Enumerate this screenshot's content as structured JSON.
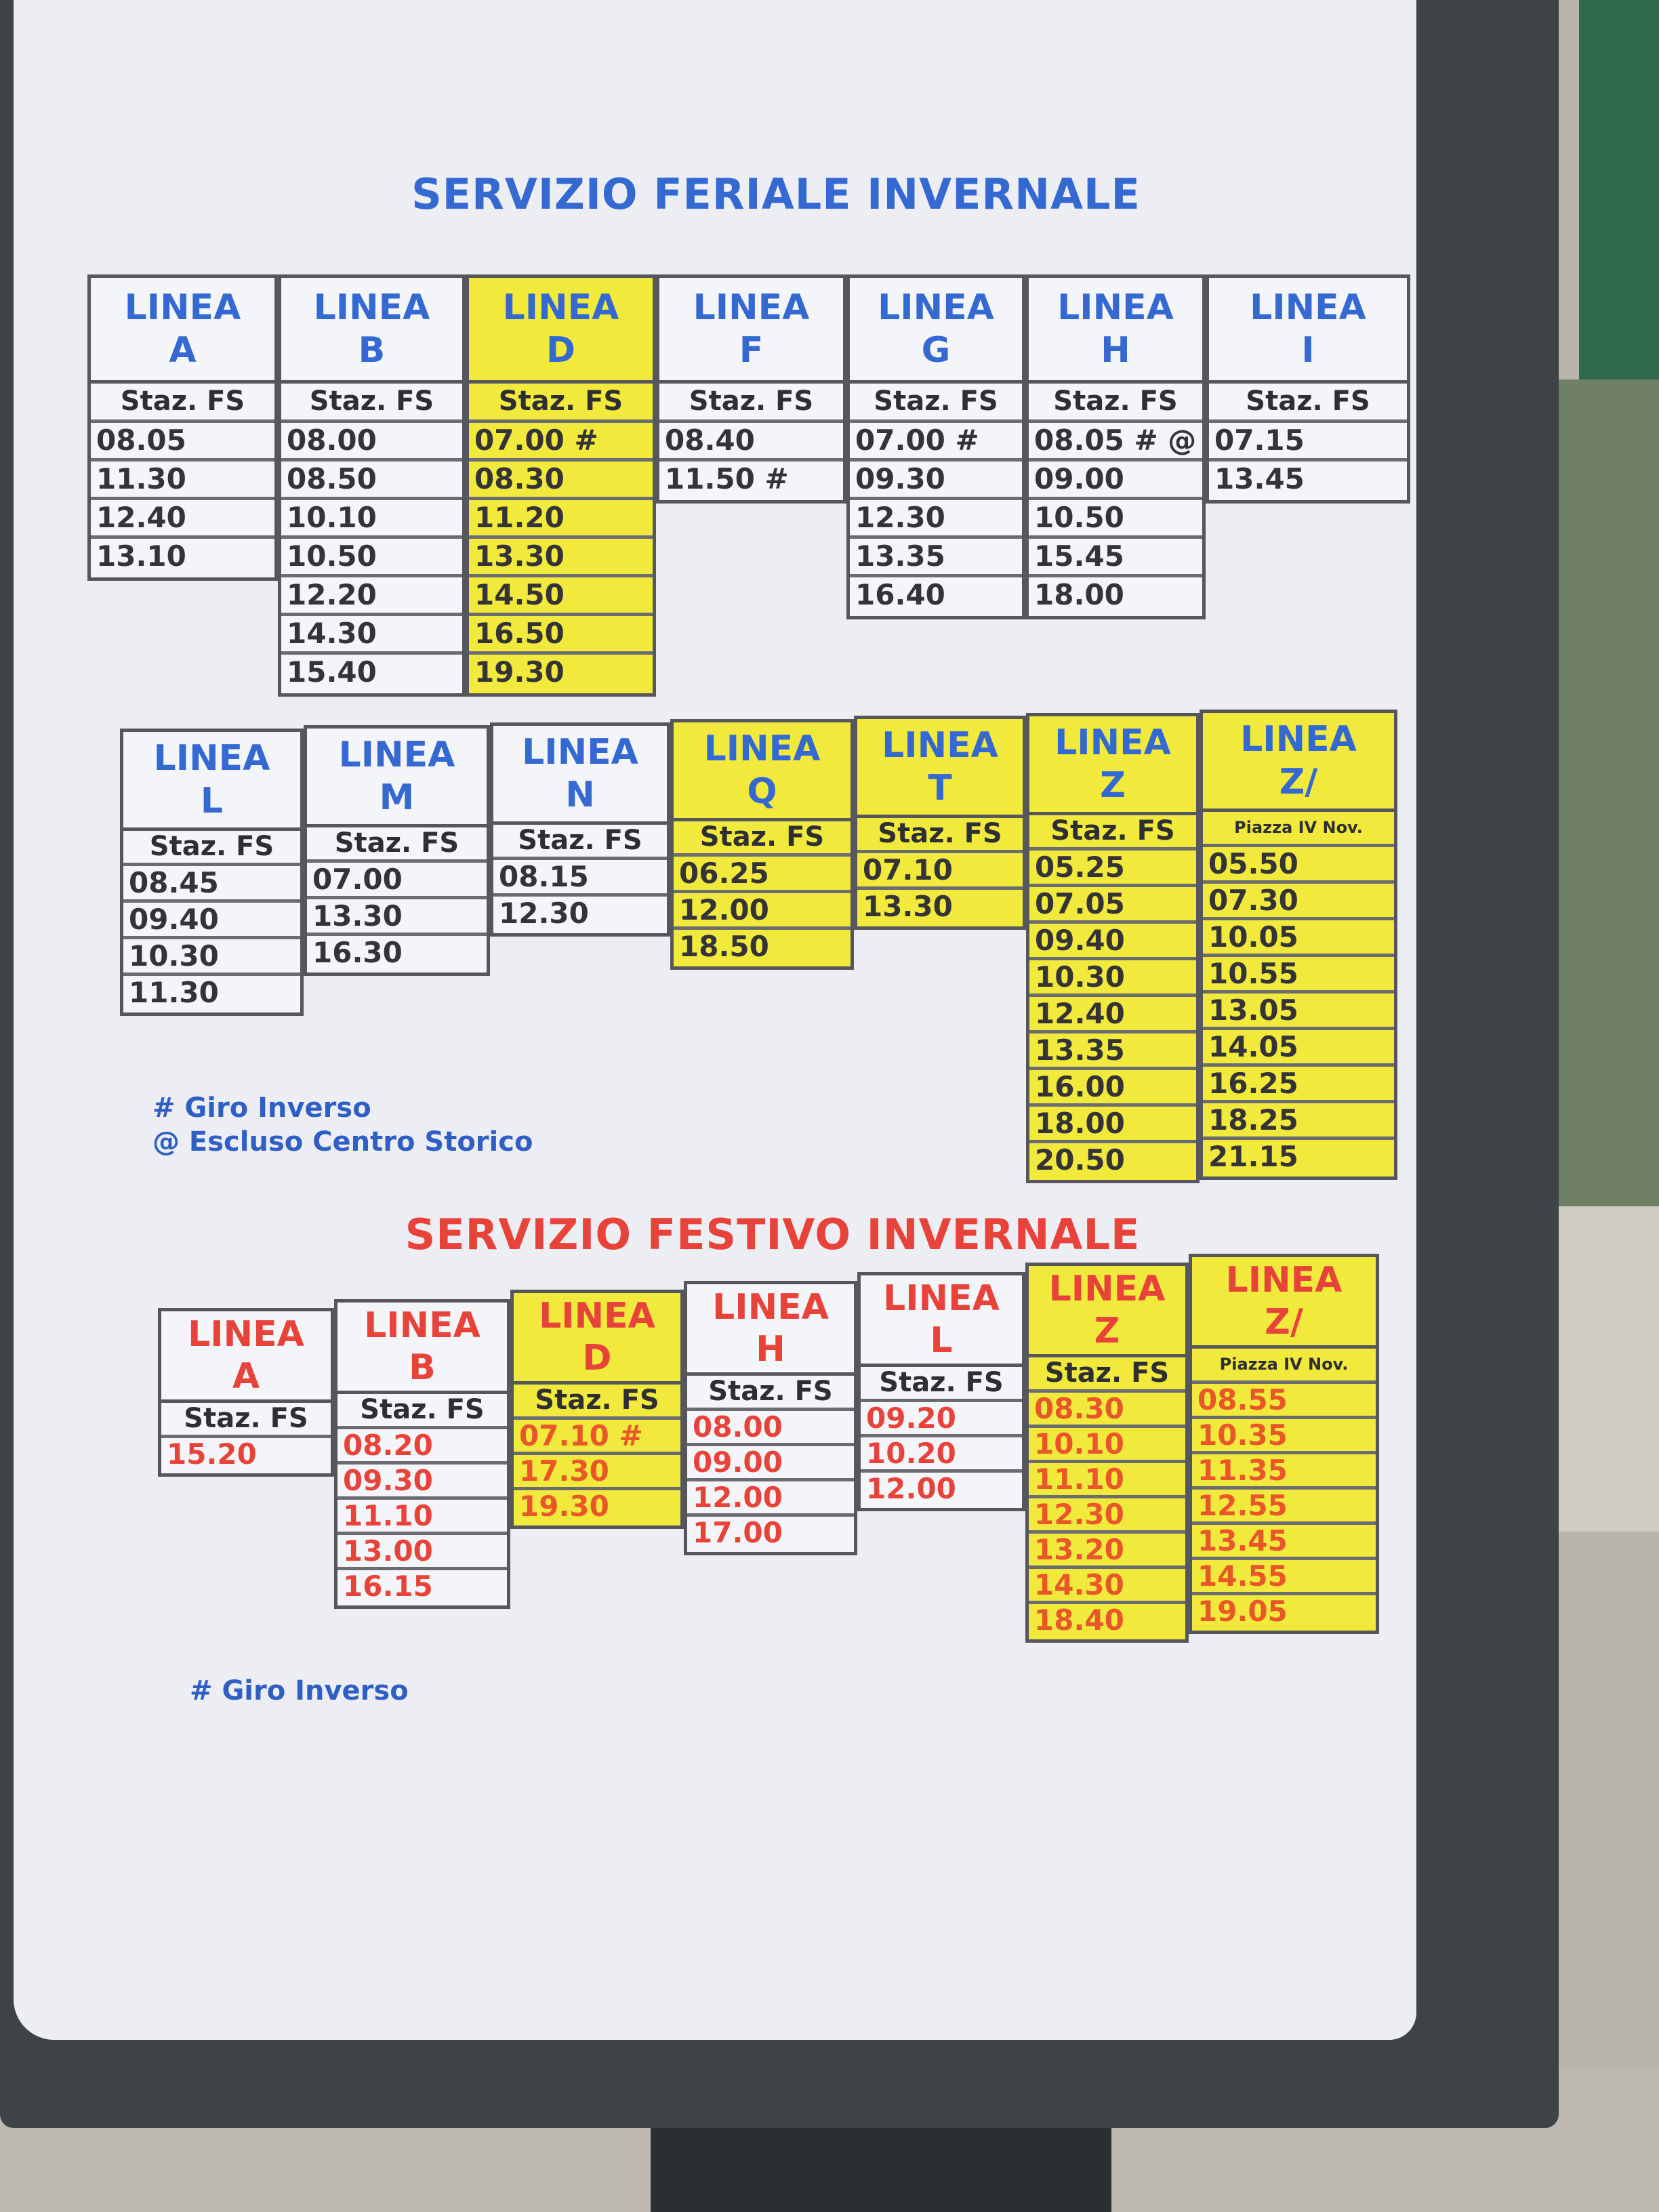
{
  "colors": {
    "header_blue": "#3569d2",
    "festivo_red": "#e8433a",
    "highlight_yellow": "#f1e93c",
    "time_dark": "#333338"
  },
  "sections": [
    {
      "title": "SERVIZIO FERIALE INVERNALE",
      "columns": [
        {
          "label": "LINEA",
          "line": "A",
          "stop": "Staz. FS",
          "highlighted": false,
          "times": [
            "08.05",
            "11.30",
            "12.40",
            "13.10"
          ]
        },
        {
          "label": "LINEA",
          "line": "B",
          "stop": "Staz. FS",
          "highlighted": false,
          "times": [
            "08.00",
            "08.50",
            "10.10",
            "10.50",
            "12.20",
            "14.30",
            "15.40"
          ]
        },
        {
          "label": "LINEA",
          "line": "D",
          "stop": "Staz. FS",
          "highlighted": true,
          "times": [
            "07.00 #",
            "08.30",
            "11.20",
            "13.30",
            "14.50",
            "16.50",
            "19.30"
          ]
        },
        {
          "label": "LINEA",
          "line": "F",
          "stop": "Staz. FS",
          "highlighted": false,
          "times": [
            "08.40",
            "11.50 #"
          ]
        },
        {
          "label": "LINEA",
          "line": "G",
          "stop": "Staz. FS",
          "highlighted": false,
          "times": [
            "07.00 #",
            "09.30",
            "12.30",
            "13.35",
            "16.40"
          ]
        },
        {
          "label": "LINEA",
          "line": "H",
          "stop": "Staz. FS",
          "highlighted": false,
          "times": [
            "08.05 # @",
            "09.00",
            "10.50",
            "15.45",
            "18.00"
          ]
        },
        {
          "label": "LINEA",
          "line": "I",
          "stop": "Staz. FS",
          "highlighted": false,
          "times": [
            "07.15",
            "13.45"
          ]
        }
      ]
    },
    {
      "title": "",
      "columns": [
        {
          "label": "LINEA",
          "line": "L",
          "stop": "Staz. FS",
          "highlighted": false,
          "times": [
            "08.45",
            "09.40",
            "10.30",
            "11.30"
          ]
        },
        {
          "label": "LINEA",
          "line": "M",
          "stop": "Staz. FS",
          "highlighted": false,
          "times": [
            "07.00",
            "13.30",
            "16.30"
          ]
        },
        {
          "label": "LINEA",
          "line": "N",
          "stop": "Staz. FS",
          "highlighted": false,
          "times": [
            "08.15",
            "12.30"
          ]
        },
        {
          "label": "LINEA",
          "line": "Q",
          "stop": "Staz. FS",
          "highlighted": true,
          "times": [
            "06.25",
            "12.00",
            "18.50"
          ]
        },
        {
          "label": "LINEA",
          "line": "T",
          "stop": "Staz. FS",
          "highlighted": true,
          "times": [
            "07.10",
            "13.30"
          ]
        },
        {
          "label": "LINEA",
          "line": "Z",
          "stop": "Staz. FS",
          "highlighted": true,
          "times": [
            "05.25",
            "07.05",
            "09.40",
            "10.30",
            "12.40",
            "13.35",
            "16.00",
            "18.00",
            "20.50"
          ]
        },
        {
          "label": "LINEA",
          "line": "Z/",
          "stop": "Piazza IV Nov.",
          "highlighted": true,
          "times": [
            "05.50",
            "07.30",
            "10.05",
            "10.55",
            "13.05",
            "14.05",
            "16.25",
            "18.25",
            "21.15"
          ]
        }
      ],
      "notes": [
        "# Giro Inverso",
        "@ Escluso Centro Storico"
      ]
    },
    {
      "title": "SERVIZIO FESTIVO INVERNALE",
      "columns": [
        {
          "label": "LINEA",
          "line": "A",
          "stop": "Staz. FS",
          "highlighted": false,
          "times": [
            "15.20"
          ]
        },
        {
          "label": "LINEA",
          "line": "B",
          "stop": "Staz. FS",
          "highlighted": false,
          "times": [
            "08.20",
            "09.30",
            "11.10",
            "13.00",
            "16.15"
          ]
        },
        {
          "label": "LINEA",
          "line": "D",
          "stop": "Staz. FS",
          "highlighted": true,
          "times": [
            "07.10 #",
            "17.30",
            "19.30"
          ]
        },
        {
          "label": "LINEA",
          "line": "H",
          "stop": "Staz. FS",
          "highlighted": false,
          "times": [
            "08.00",
            "09.00",
            "12.00",
            "17.00"
          ]
        },
        {
          "label": "LINEA",
          "line": "L",
          "stop": "Staz. FS",
          "highlighted": false,
          "times": [
            "09.20",
            "10.20",
            "12.00"
          ]
        },
        {
          "label": "LINEA",
          "line": "Z",
          "stop": "Staz. FS",
          "highlighted": true,
          "times": [
            "08.30",
            "10.10",
            "11.10",
            "12.30",
            "13.20",
            "14.30",
            "18.40"
          ]
        },
        {
          "label": "LINEA",
          "line": "Z/",
          "stop": "Piazza IV Nov.",
          "highlighted": true,
          "times": [
            "08.55",
            "10.35",
            "11.35",
            "12.55",
            "13.45",
            "14.55",
            "19.05"
          ]
        }
      ],
      "notes": [
        "# Giro Inverso"
      ]
    }
  ]
}
